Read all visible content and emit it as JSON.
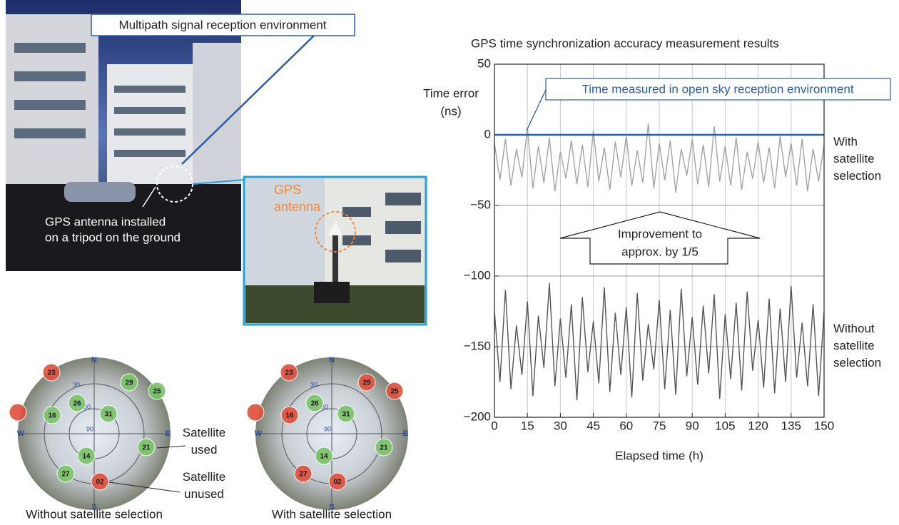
{
  "photo": {
    "caption": "Multipath signal reception environment",
    "antenna_note": [
      "GPS antenna installed",
      "on a tripod on the ground"
    ],
    "inset_label": [
      "GPS",
      "antenna"
    ]
  },
  "sky_plots": {
    "compass": [
      "N",
      "E",
      "S",
      "W"
    ],
    "rings": [
      "30",
      "60",
      "90"
    ],
    "legend": {
      "used": "Satellite used",
      "unused": "Satellite unused"
    },
    "used_color": "#7cc46a",
    "unused_color": "#e0533f",
    "plots": [
      {
        "caption": "Without satellite selection",
        "satellites": [
          {
            "label": "23",
            "used": false
          },
          {
            "label": "29",
            "used": true
          },
          {
            "label": "25",
            "used": true
          },
          {
            "label": "26",
            "used": true
          },
          {
            "label": "31",
            "used": true
          },
          {
            "label": "16",
            "used": true
          },
          {
            "label": null,
            "used": false
          },
          {
            "label": "21",
            "used": true
          },
          {
            "label": "14",
            "used": true
          },
          {
            "label": "27",
            "used": true
          },
          {
            "label": "02",
            "used": false
          }
        ]
      },
      {
        "caption": "With satellite selection",
        "satellites": [
          {
            "label": "23",
            "used": false
          },
          {
            "label": "29",
            "used": false
          },
          {
            "label": "25",
            "used": false
          },
          {
            "label": "26",
            "used": true
          },
          {
            "label": "31",
            "used": true
          },
          {
            "label": "16",
            "used": false
          },
          {
            "label": null,
            "used": false
          },
          {
            "label": "21",
            "used": true
          },
          {
            "label": "14",
            "used": true
          },
          {
            "label": "27",
            "used": false
          },
          {
            "label": "02",
            "used": false
          }
        ]
      }
    ]
  },
  "chart_data": {
    "type": "line",
    "title": "GPS time synchronization accuracy measurement results",
    "y_label": [
      "Time error",
      "(ns)"
    ],
    "x_label": "Elapsed time (h)",
    "annotation": [
      "Improvement to",
      "approx. by 1/5"
    ],
    "xlim": [
      0,
      150
    ],
    "ylim": [
      -200,
      50
    ],
    "xticks": [
      0,
      15,
      30,
      45,
      60,
      75,
      90,
      105,
      120,
      135,
      150
    ],
    "yticks": [
      50,
      0,
      {
        "value": -50,
        "label": "−50"
      },
      {
        "value": -100,
        "label": "−100"
      },
      {
        "value": -150,
        "label": "−150"
      },
      {
        "value": -200,
        "label": "−200"
      }
    ],
    "grid": true,
    "x": [
      0,
      2.5,
      5,
      7.5,
      10,
      12.5,
      15,
      17.5,
      20,
      22.5,
      25,
      27.5,
      30,
      32.5,
      35,
      37.5,
      40,
      42.5,
      45,
      47.5,
      50,
      52.5,
      55,
      57.5,
      60,
      62.5,
      65,
      67.5,
      70,
      72.5,
      75,
      77.5,
      80,
      82.5,
      85,
      87.5,
      90,
      92.5,
      95,
      97.5,
      100,
      102.5,
      105,
      107.5,
      110,
      112.5,
      115,
      117.5,
      120,
      122.5,
      125,
      127.5,
      130,
      132.5,
      135,
      137.5,
      140,
      142.5,
      145,
      147.5,
      150
    ],
    "series": [
      {
        "name": "With satellite selection",
        "color": "#a3a3a3",
        "values": [
          -6,
          -32,
          -3,
          -36,
          -10,
          -30,
          5,
          -38,
          -8,
          -34,
          -2,
          -40,
          -12,
          -31,
          -4,
          -35,
          -7,
          -37,
          3,
          -33,
          -9,
          -39,
          -5,
          -30,
          -1,
          -36,
          -11,
          -34,
          8,
          -38,
          -6,
          -32,
          -4,
          -41,
          -10,
          -29,
          -3,
          -35,
          -7,
          -37,
          6,
          -33,
          -8,
          -36,
          -2,
          -39,
          -12,
          -31,
          -5,
          -34,
          -9,
          -38,
          -1,
          -30,
          -6,
          -36,
          -3,
          -40,
          -10,
          -33,
          -7
        ]
      },
      {
        "name": "Without satellite selection",
        "color": "#555555",
        "values": [
          -125,
          -175,
          -110,
          -180,
          -135,
          -170,
          -118,
          -185,
          -128,
          -165,
          -105,
          -178,
          -130,
          -172,
          -120,
          -188,
          -115,
          -168,
          -132,
          -176,
          -108,
          -182,
          -126,
          -170,
          -122,
          -186,
          -112,
          -174,
          -134,
          -166,
          -117,
          -180,
          -124,
          -184,
          -109,
          -171,
          -129,
          -177,
          -121,
          -169,
          -113,
          -187,
          -127,
          -173,
          -119,
          -181,
          -111,
          -167,
          -131,
          -179,
          -116,
          -183,
          -123,
          -175,
          -107,
          -172,
          -133,
          -178,
          -120,
          -185,
          -125
        ]
      },
      {
        "name": "Time measured in open sky reception environment",
        "color": "#2a5caa",
        "x": [
          0,
          150
        ],
        "values": [
          0,
          0
        ]
      }
    ]
  }
}
